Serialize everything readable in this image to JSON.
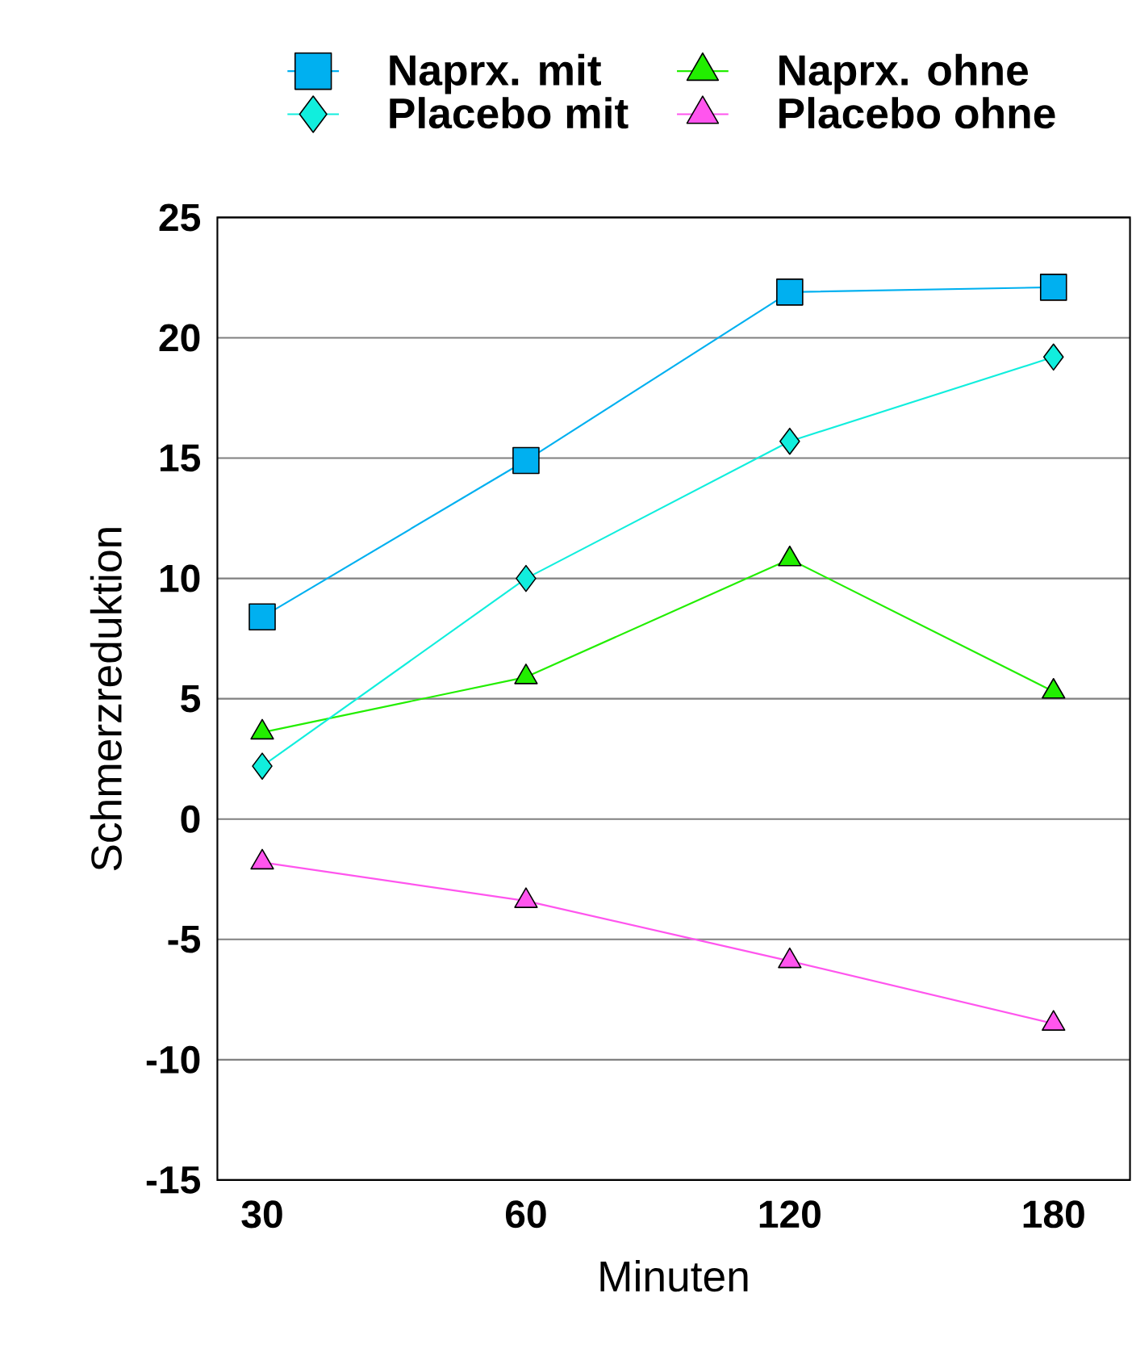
{
  "chart_data": {
    "type": "line",
    "xlabel": "Minuten",
    "ylabel": "Schmerzreduktion",
    "categories": [
      "30",
      "60",
      "120",
      "180"
    ],
    "series": [
      {
        "name": "Naprx. mit",
        "color": "#00b0f0",
        "marker": "square",
        "values": [
          8.4,
          14.9,
          21.9,
          22.1
        ]
      },
      {
        "name": "Naprx. ohne",
        "color": "#22ee00",
        "marker": "triangle",
        "values": [
          3.6,
          5.9,
          10.8,
          5.3
        ]
      },
      {
        "name": "Placebo mit",
        "color": "#11eedd",
        "marker": "diamond",
        "values": [
          2.2,
          10.0,
          15.7,
          19.2
        ]
      },
      {
        "name": "Placebo ohne",
        "color": "#ff55ee",
        "marker": "triangle",
        "values": [
          -1.8,
          -3.4,
          -5.9,
          -8.5
        ]
      }
    ],
    "ylim": [
      -15,
      25
    ],
    "yticks": [
      -15,
      -10,
      -5,
      0,
      5,
      10,
      15,
      20,
      25
    ],
    "grid": "y",
    "legend": "top",
    "line_style": "solid"
  }
}
